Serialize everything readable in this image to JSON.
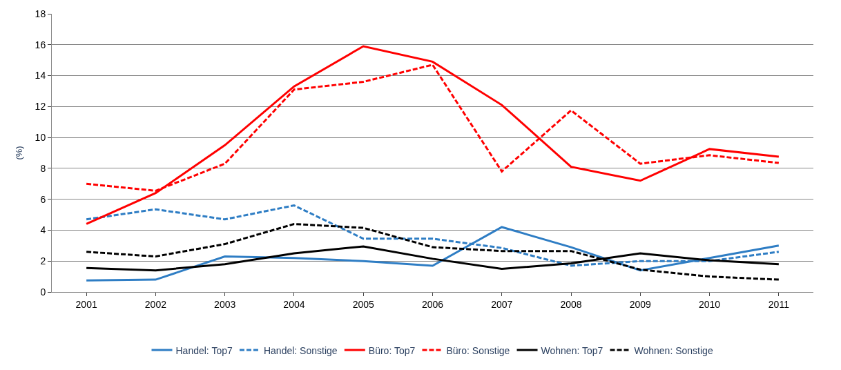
{
  "chart_data": {
    "type": "line",
    "ylabel": "(%)",
    "categories": [
      "2001",
      "2002",
      "2003",
      "2004",
      "2005",
      "2006",
      "2007",
      "2008",
      "2009",
      "2010",
      "2011"
    ],
    "series": [
      {
        "name": "Handel: Top7",
        "color": "#2e7dc4",
        "line_style": "solid",
        "values": [
          0.75,
          0.8,
          2.3,
          2.2,
          2.0,
          1.7,
          4.2,
          2.9,
          1.4,
          2.2,
          3.0
        ]
      },
      {
        "name": "Handel: Sonstige",
        "color": "#2e7dc4",
        "line_style": "dashed",
        "values": [
          4.7,
          5.35,
          4.7,
          5.6,
          3.45,
          3.45,
          2.85,
          1.7,
          2.0,
          2.0,
          2.6
        ]
      },
      {
        "name": "Büro: Top7",
        "color": "#ff0000",
        "line_style": "solid",
        "values": [
          4.4,
          6.4,
          9.5,
          13.3,
          15.9,
          14.9,
          12.1,
          8.1,
          7.2,
          9.25,
          8.75
        ]
      },
      {
        "name": "Büro: Sonstige",
        "color": "#ff0000",
        "line_style": "dashed",
        "values": [
          7.0,
          6.55,
          8.3,
          13.1,
          13.6,
          14.7,
          7.8,
          11.75,
          8.3,
          8.85,
          8.35
        ]
      },
      {
        "name": "Wohnen: Top7",
        "color": "#000000",
        "line_style": "solid",
        "values": [
          1.55,
          1.4,
          1.8,
          2.5,
          2.95,
          2.15,
          1.5,
          1.85,
          2.5,
          2.05,
          1.8
        ]
      },
      {
        "name": "Wohnen: Sonstige",
        "color": "#000000",
        "line_style": "dashed",
        "values": [
          2.6,
          2.3,
          3.1,
          4.4,
          4.15,
          2.9,
          2.65,
          2.65,
          1.45,
          1.0,
          0.8
        ]
      }
    ],
    "ylim": [
      0,
      18
    ],
    "yticks": [
      0,
      2,
      4,
      6,
      8,
      10,
      12,
      14,
      16,
      18
    ],
    "grid": "y",
    "legend": "bottom",
    "marker": "none"
  }
}
